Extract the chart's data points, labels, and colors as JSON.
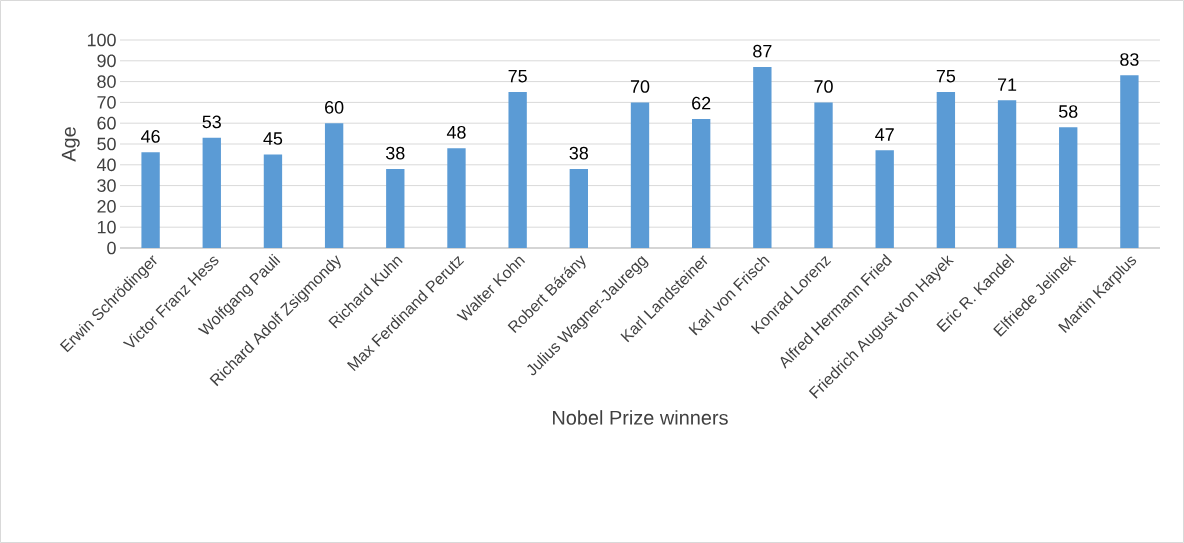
{
  "chart_data": {
    "type": "bar",
    "xlabel": "Nobel Prize winners",
    "ylabel": "Age",
    "categories": [
      "Erwin Schrödinger",
      "Victor Franz Hess",
      "Wolfgang Pauli",
      "Richard Adolf Zsigmondy",
      "Richard Kuhn",
      "Max Ferdinand Perutz",
      "Walter Kohn",
      "Robert Bárány",
      "Julius Wagner-Jauregg",
      "Karl Landsteiner",
      "Karl von Frisch",
      "Konrad Lorenz",
      "Alfred Hermann Fried",
      "Friedrich August von Hayek",
      "Eric R. Kandel",
      "Elfriede Jelinek",
      "Martin Karplus"
    ],
    "values": [
      46,
      53,
      45,
      60,
      38,
      48,
      75,
      38,
      70,
      62,
      87,
      70,
      47,
      75,
      71,
      58,
      83
    ],
    "color": "#5b9bd5",
    "ylim": [
      0,
      100
    ],
    "yticks": [
      0,
      10,
      20,
      30,
      40,
      50,
      60,
      70,
      80,
      90,
      100
    ],
    "grid": "y",
    "data_labels": true
  }
}
